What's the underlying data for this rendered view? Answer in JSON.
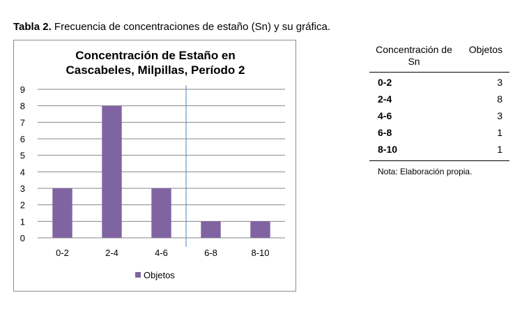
{
  "caption": {
    "lead": "Tabla 2.",
    "text": "Frecuencia de concentraciones de estaño (Sn) y su gráfica."
  },
  "chart_data": {
    "type": "bar",
    "title_line1": "Concentración de Estaño en",
    "title_line2": "Cascabeles, Milpillas, Período 2",
    "categories": [
      "0-2",
      "2-4",
      "4-6",
      "6-8",
      "8-10"
    ],
    "series": [
      {
        "name": "Objetos",
        "values": [
          3,
          8,
          3,
          1,
          1
        ],
        "color": "#8064a2"
      }
    ],
    "ylim": [
      0,
      9
    ],
    "yticks": [
      0,
      1,
      2,
      3,
      4,
      5,
      6,
      7,
      8,
      9
    ],
    "grid": true,
    "legend": "bottom",
    "divider_after_category": 2,
    "divider_color": "#4f81bd"
  },
  "table": {
    "headers": [
      "Concentración de Sn",
      "Objetos"
    ],
    "rows": [
      {
        "range": "0-2",
        "count": "3"
      },
      {
        "range": "2-4",
        "count": "8"
      },
      {
        "range": "4-6",
        "count": "3"
      },
      {
        "range": "6-8",
        "count": "1"
      },
      {
        "range": "8-10",
        "count": "1"
      }
    ],
    "note": "Nota: Elaboración propia."
  }
}
